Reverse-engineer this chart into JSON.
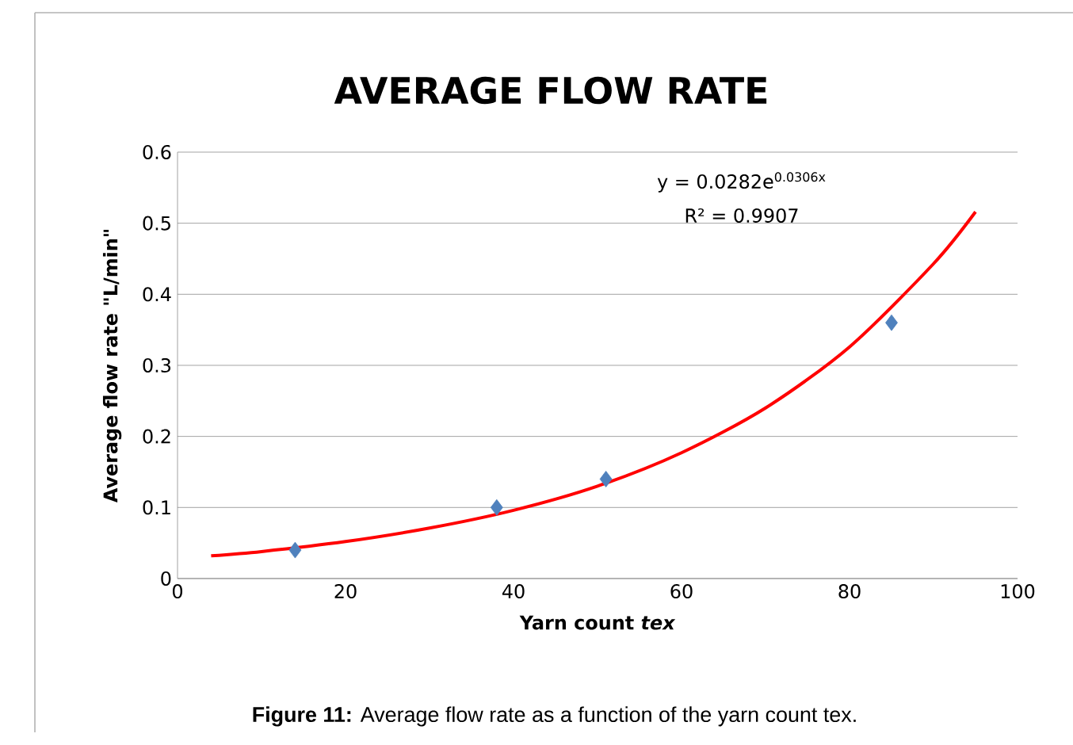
{
  "chart_data": {
    "type": "scatter",
    "title": "AVERAGE FLOW RATE",
    "xlabel": "Yarn count   *tex*",
    "ylabel": "Average flow rate  \"L/min\"",
    "annotations": [
      "y = 0.0282e$^{0.0306x}$",
      "R² = 0.9907",
      "**Figure 11:** Average flow rate as a function of the yarn count tex."
    ],
    "xlim": [
      0,
      100
    ],
    "xticks": [
      0,
      20,
      40,
      60,
      80,
      100
    ],
    "ylim": [
      0,
      0.6
    ],
    "yticks": [
      0,
      0.1,
      0.2,
      0.3,
      0.4,
      0.5,
      0.6
    ],
    "grid": "y",
    "series": [
      {
        "marker": "diamond",
        "color": "#4f81bd",
        "x": [
          14,
          38,
          51,
          85
        ],
        "values": [
          0.04,
          0.1,
          0.14,
          0.36
        ]
      },
      {
        "type": "line",
        "marker": "none",
        "line_style": "solid",
        "color": "#ff0000",
        "x": [
          4,
          10,
          20,
          30,
          40,
          50,
          60,
          70,
          80,
          90,
          95
        ],
        "values": [
          0.032,
          0.038,
          0.052,
          0.071,
          0.096,
          0.13,
          0.177,
          0.24,
          0.326,
          0.443,
          0.516
        ]
      }
    ]
  }
}
